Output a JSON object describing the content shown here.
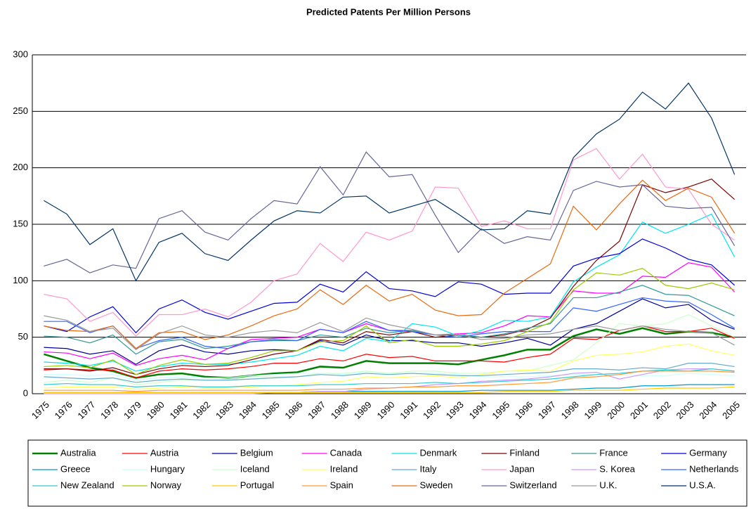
{
  "chart_data": {
    "type": "line",
    "title": "Predicted Patents Per Million Persons",
    "categories": [
      "1975",
      "1976",
      "1977",
      "1978",
      "1979",
      "1980",
      "1981",
      "1982",
      "1983",
      "1984",
      "1985",
      "1986",
      "1987",
      "1988",
      "1989",
      "1990",
      "1991",
      "1992",
      "1993",
      "1994",
      "1995",
      "1996",
      "1997",
      "1998",
      "1999",
      "2000",
      "2001",
      "2002",
      "2003",
      "2004",
      "2005"
    ],
    "ylim": [
      0,
      300
    ],
    "yticks": [
      0,
      50,
      100,
      150,
      200,
      250,
      300
    ],
    "grid": true,
    "legend": "bottom",
    "series": [
      {
        "name": "Australia",
        "color": "#008000",
        "line_width": 2.5,
        "values": [
          35,
          29,
          23,
          20,
          14,
          17,
          18,
          15,
          14,
          16,
          18,
          19,
          24,
          23,
          29,
          27,
          27,
          27,
          26,
          30,
          34,
          39,
          39,
          51,
          57,
          53,
          58,
          53,
          55,
          54,
          50
        ]
      },
      {
        "name": "Austria",
        "color": "#ff0000",
        "values": [
          21,
          22,
          21,
          21,
          14,
          20,
          22,
          21,
          22,
          24,
          27,
          27,
          31,
          29,
          35,
          32,
          33,
          29,
          29,
          29,
          28,
          32,
          35,
          49,
          48,
          56,
          60,
          55,
          55,
          58,
          49
        ]
      },
      {
        "name": "Belgium",
        "color": "#000099",
        "values": [
          41,
          40,
          35,
          38,
          26,
          38,
          43,
          37,
          35,
          38,
          39,
          38,
          47,
          43,
          52,
          47,
          47,
          45,
          45,
          42,
          45,
          49,
          43,
          57,
          62,
          73,
          84,
          76,
          79,
          65,
          57
        ]
      },
      {
        "name": "Canada",
        "color": "#ff00ff",
        "values": [
          37,
          36,
          31,
          36,
          25,
          31,
          34,
          30,
          40,
          48,
          49,
          50,
          57,
          54,
          62,
          56,
          56,
          52,
          53,
          54,
          60,
          69,
          68,
          91,
          89,
          89,
          104,
          103,
          116,
          112,
          90
        ]
      },
      {
        "name": "Denmark",
        "color": "#00e5ee",
        "values": [
          28,
          27,
          25,
          29,
          20,
          24,
          27,
          26,
          26,
          28,
          31,
          34,
          42,
          38,
          49,
          46,
          62,
          59,
          51,
          56,
          65,
          64,
          68,
          99,
          112,
          123,
          152,
          142,
          150,
          159,
          121
        ]
      },
      {
        "name": "Finland",
        "color": "#800000",
        "values": [
          22,
          22,
          20,
          23,
          17,
          22,
          25,
          24,
          25,
          30,
          35,
          38,
          48,
          45,
          55,
          52,
          55,
          50,
          52,
          50,
          52,
          57,
          67,
          95,
          118,
          135,
          185,
          178,
          183,
          190,
          172
        ]
      },
      {
        "name": "France",
        "color": "#339999",
        "values": [
          51,
          50,
          45,
          52,
          35,
          46,
          48,
          40,
          42,
          46,
          47,
          47,
          52,
          50,
          58,
          54,
          56,
          52,
          52,
          50,
          53,
          58,
          62,
          85,
          85,
          90,
          96,
          88,
          87,
          78,
          69
        ]
      },
      {
        "name": "Germany",
        "color": "#0000dd",
        "values": [
          60,
          55,
          68,
          77,
          54,
          75,
          83,
          72,
          66,
          73,
          80,
          81,
          97,
          90,
          108,
          93,
          91,
          86,
          99,
          97,
          88,
          89,
          89,
          113,
          120,
          124,
          137,
          129,
          119,
          114,
          96
        ]
      },
      {
        "name": "Greece",
        "color": "#0099cc",
        "values": [
          1,
          1,
          1,
          1,
          1,
          1,
          1,
          1,
          1,
          1,
          1,
          1,
          2,
          2,
          2,
          2,
          2,
          2,
          2,
          3,
          3,
          3,
          3,
          4,
          5,
          5,
          7,
          7,
          8,
          8,
          8
        ]
      },
      {
        "name": "Hungary",
        "color": "#ccffff",
        "values": [
          17,
          17,
          16,
          17,
          12,
          14,
          15,
          14,
          14,
          16,
          17,
          18,
          18,
          17,
          19,
          18,
          18,
          18,
          17,
          15,
          15,
          15,
          16,
          17,
          17,
          17,
          16,
          16,
          18,
          17,
          16
        ]
      },
      {
        "name": "Iceland",
        "color": "#ccffcc",
        "values": [
          10,
          12,
          10,
          14,
          8,
          10,
          12,
          12,
          12,
          15,
          15,
          15,
          18,
          18,
          20,
          18,
          20,
          20,
          18,
          18,
          20,
          20,
          25,
          30,
          45,
          62,
          60,
          62,
          70,
          60,
          50
        ]
      },
      {
        "name": "Ireland",
        "color": "#ffff66",
        "values": [
          5,
          6,
          6,
          6,
          4,
          5,
          6,
          5,
          5,
          6,
          7,
          8,
          10,
          11,
          15,
          14,
          15,
          16,
          14,
          17,
          20,
          21,
          20,
          29,
          34,
          35,
          37,
          42,
          44,
          38,
          34
        ]
      },
      {
        "name": "Italy",
        "color": "#66aacc",
        "values": [
          15,
          14,
          13,
          14,
          10,
          12,
          13,
          12,
          12,
          13,
          14,
          15,
          17,
          16,
          18,
          17,
          18,
          17,
          16,
          16,
          17,
          18,
          19,
          22,
          22,
          21,
          23,
          22,
          27,
          27,
          24
        ]
      },
      {
        "name": "Japan",
        "color": "#ff99cc",
        "values": [
          88,
          84,
          64,
          72,
          51,
          70,
          70,
          75,
          68,
          81,
          100,
          106,
          133,
          117,
          143,
          136,
          144,
          183,
          182,
          148,
          153,
          146,
          146,
          207,
          217,
          190,
          212,
          183,
          181,
          150,
          136
        ]
      },
      {
        "name": "S. Korea",
        "color": "#cc99ff",
        "values": [
          0,
          0,
          0,
          0,
          0,
          0,
          0,
          0,
          0,
          0,
          1,
          1,
          2,
          2,
          4,
          5,
          6,
          8,
          9,
          11,
          12,
          13,
          15,
          18,
          19,
          13,
          17,
          21,
          22,
          22,
          20
        ]
      },
      {
        "name": "Netherlands",
        "color": "#3366ff",
        "values": [
          64,
          64,
          54,
          60,
          40,
          47,
          50,
          42,
          40,
          46,
          48,
          47,
          57,
          54,
          64,
          56,
          55,
          52,
          50,
          53,
          55,
          55,
          55,
          76,
          73,
          79,
          85,
          82,
          81,
          70,
          58
        ]
      },
      {
        "name": "New Zealand",
        "color": "#33cccc",
        "values": [
          8,
          9,
          8,
          8,
          6,
          7,
          7,
          6,
          6,
          7,
          7,
          7,
          8,
          8,
          9,
          9,
          9,
          10,
          9,
          10,
          11,
          12,
          13,
          15,
          17,
          18,
          20,
          21,
          20,
          22,
          20
        ]
      },
      {
        "name": "Norway",
        "color": "#99cc00",
        "values": [
          24,
          25,
          23,
          30,
          17,
          25,
          30,
          26,
          27,
          32,
          38,
          38,
          46,
          47,
          60,
          45,
          48,
          42,
          42,
          44,
          47,
          55,
          63,
          92,
          107,
          105,
          111,
          96,
          93,
          98,
          92
        ]
      },
      {
        "name": "Portugal",
        "color": "#ffcc00",
        "values": [
          1,
          1,
          1,
          1,
          1,
          1,
          1,
          1,
          1,
          1,
          1,
          1,
          1,
          1,
          1,
          1,
          1,
          1,
          1,
          1,
          2,
          2,
          2,
          3,
          3,
          3,
          4,
          5,
          5,
          5,
          6
        ]
      },
      {
        "name": "Spain",
        "color": "#ff9933",
        "values": [
          3,
          3,
          3,
          3,
          2,
          3,
          3,
          3,
          3,
          3,
          3,
          3,
          4,
          4,
          5,
          5,
          6,
          6,
          7,
          7,
          8,
          9,
          10,
          14,
          15,
          17,
          20,
          20,
          20,
          20,
          19
        ]
      },
      {
        "name": "Sweden",
        "color": "#e86a10",
        "values": [
          60,
          56,
          55,
          60,
          40,
          54,
          55,
          48,
          52,
          60,
          69,
          75,
          92,
          79,
          96,
          82,
          88,
          74,
          69,
          70,
          89,
          102,
          115,
          166,
          145,
          168,
          189,
          171,
          182,
          174,
          142
        ]
      },
      {
        "name": "Switzerland",
        "color": "#666699",
        "values": [
          113,
          119,
          107,
          114,
          111,
          155,
          162,
          143,
          136,
          155,
          171,
          168,
          201,
          176,
          214,
          192,
          194,
          158,
          125,
          146,
          133,
          139,
          136,
          180,
          188,
          183,
          185,
          166,
          164,
          165,
          131
        ]
      },
      {
        "name": "U.K.",
        "color": "#999999",
        "values": [
          69,
          65,
          55,
          58,
          39,
          53,
          60,
          52,
          50,
          54,
          56,
          54,
          63,
          55,
          67,
          61,
          57,
          52,
          52,
          48,
          49,
          52,
          53,
          57,
          60,
          56,
          60,
          57,
          55,
          54,
          43
        ]
      },
      {
        "name": "U.S.A.",
        "color": "#003366",
        "values": [
          171,
          159,
          132,
          146,
          100,
          134,
          142,
          124,
          118,
          136,
          153,
          162,
          160,
          174,
          175,
          160,
          166,
          172,
          159,
          145,
          146,
          162,
          159,
          209,
          230,
          243,
          267,
          252,
          275,
          244,
          194
        ]
      }
    ]
  }
}
